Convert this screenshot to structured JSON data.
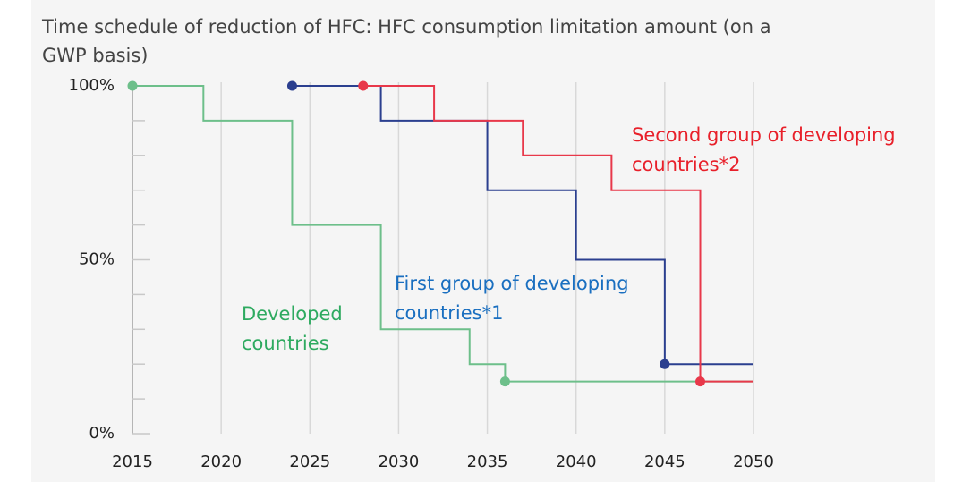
{
  "chart_data": {
    "type": "line",
    "title": "Time schedule of reduction of HFC: HFC consumption limitation amount (on a GWP basis)",
    "series": [
      {
        "name": "Developed countries",
        "color": "#6dbf8a",
        "x": [
          2015,
          2019,
          2019,
          2024,
          2024,
          2029,
          2029,
          2034,
          2034,
          2036,
          2036,
          2050
        ],
        "values": [
          100,
          100,
          90,
          90,
          60,
          60,
          30,
          30,
          20,
          20,
          15,
          15
        ]
      },
      {
        "name": "First group of developing countries*1",
        "color": "#2b3f8f",
        "x": [
          2024,
          2029,
          2029,
          2035,
          2035,
          2040,
          2040,
          2045,
          2045,
          2050
        ],
        "values": [
          100,
          100,
          90,
          90,
          70,
          70,
          50,
          50,
          20,
          20
        ]
      },
      {
        "name": "Second group of developing countries*2",
        "color": "#e8384a",
        "x": [
          2028,
          2032,
          2032,
          2037,
          2037,
          2042,
          2042,
          2047,
          2047,
          2050
        ],
        "values": [
          100,
          100,
          90,
          90,
          80,
          80,
          70,
          70,
          15,
          15
        ]
      }
    ],
    "xlim": [
      2015,
      2050
    ],
    "xticks": [
      2015,
      2020,
      2025,
      2030,
      2035,
      2040,
      2045,
      2050
    ],
    "ylim": [
      0,
      100
    ],
    "yticks": [
      {
        "value": 0,
        "label": "0%"
      },
      {
        "value": 50,
        "label": "50%"
      },
      {
        "value": 100,
        "label": "100%"
      }
    ],
    "minor_yticks": [
      10,
      20,
      30,
      40,
      60,
      70,
      80,
      90
    ],
    "grid": true
  }
}
